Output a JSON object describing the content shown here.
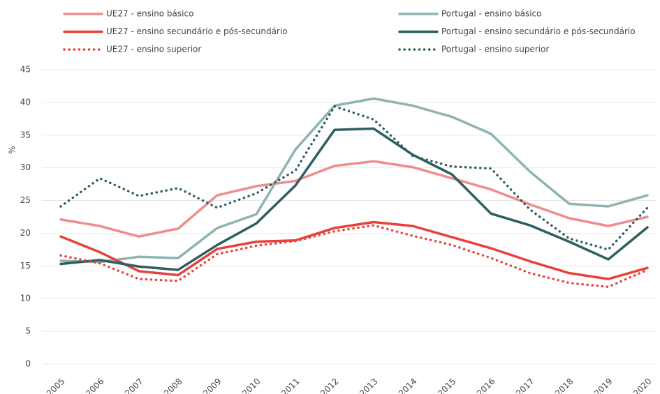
{
  "chart_data": {
    "type": "line",
    "y_label": "%",
    "categories": [
      "2005",
      "2006",
      "2007",
      "2008",
      "2009",
      "2010",
      "2011",
      "2012",
      "2013",
      "2014",
      "2015",
      "2016",
      "2017",
      "2018",
      "2019",
      "2020"
    ],
    "ylim": [
      0,
      45
    ],
    "yticks": [
      0,
      5,
      10,
      15,
      20,
      25,
      30,
      35,
      40,
      45
    ],
    "grid": true,
    "legend": "top",
    "series": [
      {
        "name": "UE27 - ensino básico",
        "color": "#f08c8c",
        "style": "solid",
        "values": [
          22.1,
          21.1,
          19.5,
          20.7,
          25.8,
          27.2,
          28.0,
          30.3,
          31.0,
          30.1,
          28.4,
          26.7,
          24.4,
          22.3,
          21.1,
          22.5
        ]
      },
      {
        "name": "Portugal - ensino básico",
        "color": "#8fb3b3",
        "style": "solid",
        "values": [
          15.8,
          15.6,
          16.4,
          16.2,
          20.8,
          22.9,
          32.8,
          39.5,
          40.6,
          39.5,
          37.8,
          35.2,
          29.4,
          24.5,
          24.1,
          25.8
        ]
      },
      {
        "name": "UE27 - ensino secundário e pós-secundário",
        "color": "#e8413b",
        "style": "solid",
        "values": [
          19.5,
          17.1,
          14.2,
          13.6,
          17.6,
          18.7,
          18.9,
          20.8,
          21.7,
          21.1,
          19.4,
          17.7,
          15.7,
          13.9,
          13.0,
          14.7
        ]
      },
      {
        "name": "Portugal - ensino secundário e pós-secundário",
        "color": "#2e5e5e",
        "style": "solid",
        "values": [
          15.3,
          15.9,
          14.9,
          14.4,
          18.2,
          21.5,
          27.3,
          35.8,
          36.0,
          32.0,
          29.0,
          23.0,
          21.2,
          18.7,
          16.0,
          20.9
        ]
      },
      {
        "name": "UE27 - ensino superior",
        "color": "#e8413b",
        "style": "dotted",
        "values": [
          16.6,
          15.4,
          13.0,
          12.7,
          16.8,
          18.1,
          18.8,
          20.3,
          21.2,
          19.6,
          18.2,
          16.2,
          13.9,
          12.4,
          11.8,
          14.4
        ]
      },
      {
        "name": "Portugal - ensino superior",
        "color": "#2e5e5e",
        "style": "dotted",
        "values": [
          24.1,
          28.4,
          25.7,
          26.9,
          23.9,
          26.1,
          29.6,
          39.4,
          37.4,
          31.8,
          30.2,
          29.9,
          23.6,
          19.2,
          17.5,
          23.9
        ]
      }
    ]
  }
}
